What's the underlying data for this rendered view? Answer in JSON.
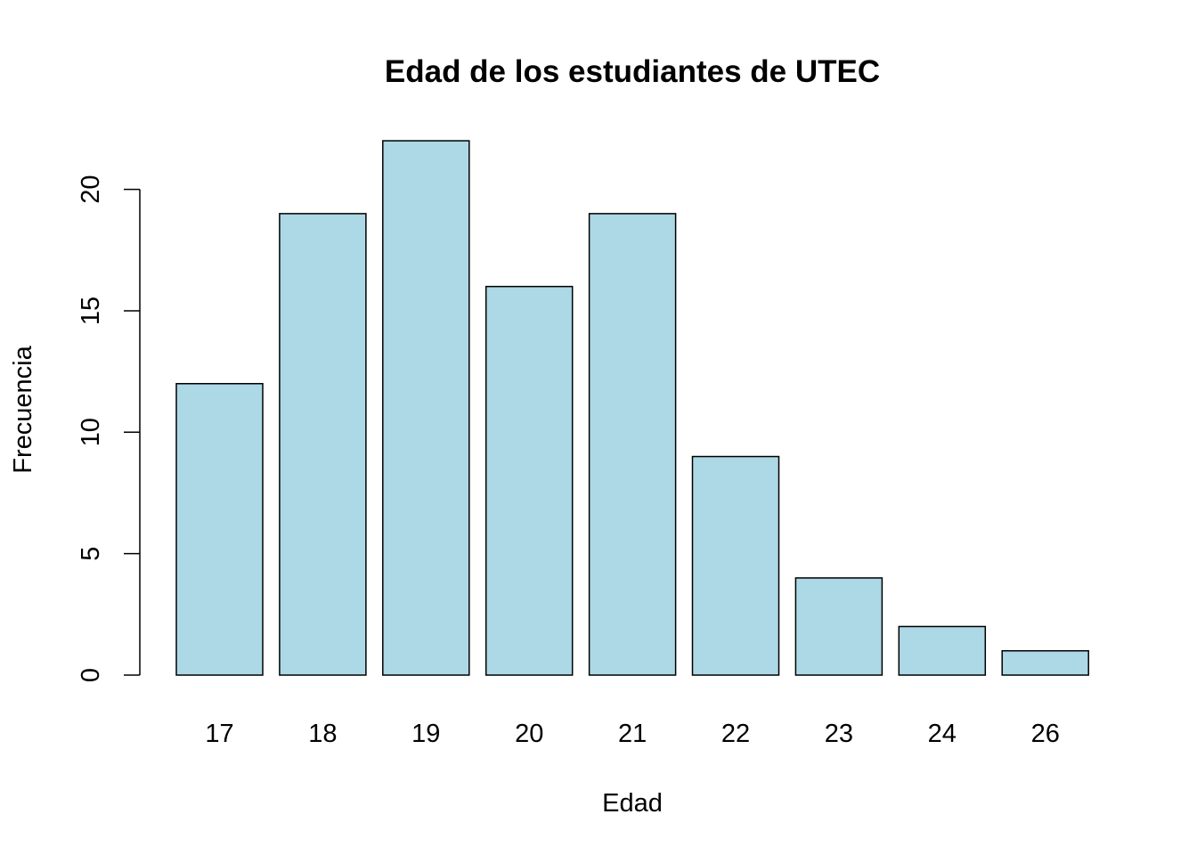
{
  "chart_data": {
    "type": "bar",
    "title": "Edad de los estudiantes de UTEC",
    "xlabel": "Edad",
    "ylabel": "Frecuencia",
    "categories": [
      "17",
      "18",
      "19",
      "20",
      "21",
      "22",
      "23",
      "24",
      "26"
    ],
    "values": [
      12,
      19,
      22,
      16,
      19,
      9,
      4,
      2,
      1
    ],
    "yticks": [
      0,
      5,
      10,
      15,
      20
    ],
    "ylim": [
      0,
      22
    ],
    "grid": false,
    "bar_color": "#add8e6",
    "border_color": "#000000"
  }
}
